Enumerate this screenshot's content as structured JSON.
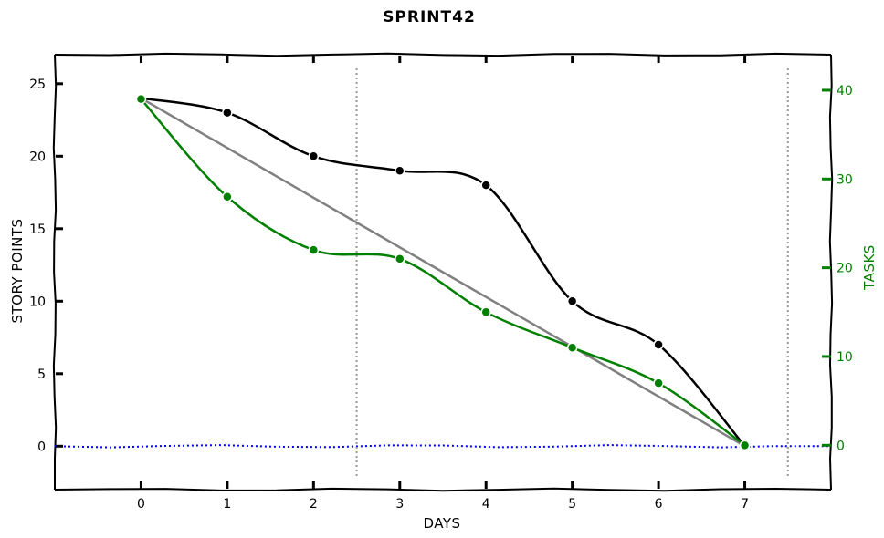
{
  "chart_data": {
    "type": "line",
    "title": "SPRINT42",
    "xlabel": "DAYS",
    "ylabel": "STORY POINTS",
    "y2label": "TASKS",
    "x": [
      0,
      1,
      2,
      3,
      4,
      5,
      6,
      7
    ],
    "xlim": [
      -1,
      8
    ],
    "ylim": [
      -3,
      27
    ],
    "y2lim": [
      -5,
      44
    ],
    "xticks": [
      0,
      1,
      2,
      3,
      4,
      5,
      6,
      7
    ],
    "yticks": [
      0,
      5,
      10,
      15,
      20,
      25
    ],
    "y2ticks": [
      0,
      10,
      20,
      30,
      40
    ],
    "series": [
      {
        "axis": "left",
        "color": "#000000",
        "markers": true,
        "values": [
          24,
          23,
          20,
          19,
          18,
          10,
          7,
          0
        ]
      },
      {
        "axis": "left",
        "color": "#808080",
        "markers": false,
        "values": [
          24,
          20.57,
          17.14,
          13.71,
          10.29,
          6.86,
          3.43,
          0
        ]
      },
      {
        "axis": "right",
        "color": "#008000",
        "markers": true,
        "values": [
          39,
          28,
          22,
          21,
          15,
          11,
          7,
          0
        ]
      }
    ],
    "reference_lines": [
      {
        "orientation": "horizontal",
        "value": 0,
        "color": "#0000ff",
        "style": "dotted"
      },
      {
        "orientation": "vertical",
        "value": 2.5,
        "color": "#999999",
        "style": "dotted"
      },
      {
        "orientation": "vertical",
        "value": 7.5,
        "color": "#999999",
        "style": "dotted"
      }
    ],
    "grid": false,
    "colors": {
      "left_axis": "#000000",
      "right_axis": "#008000"
    }
  }
}
